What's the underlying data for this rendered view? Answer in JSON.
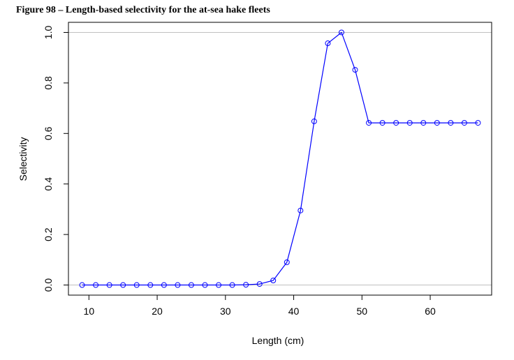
{
  "figure_title": "Figure 98 – Length-based selectivity for the at-sea hake fleets",
  "colors": {
    "series": "#0000ff",
    "refline": "#c0c0c0",
    "axis": "#000000"
  },
  "chart_data": {
    "type": "line",
    "title": "",
    "xlabel": "Length (cm)",
    "ylabel": "Selectivity",
    "xlim": [
      7.0,
      69.0
    ],
    "ylim": [
      -0.04,
      1.04
    ],
    "xticks": [
      10,
      20,
      30,
      40,
      50,
      60
    ],
    "xtick_labels": [
      "10",
      "20",
      "30",
      "40",
      "50",
      "60"
    ],
    "yticks": [
      0.0,
      0.2,
      0.4,
      0.6,
      0.8,
      1.0
    ],
    "ytick_labels": [
      "0.0",
      "0.2",
      "0.4",
      "0.6",
      "0.8",
      "1.0"
    ],
    "reference_lines": [
      0,
      1
    ],
    "grid": false,
    "markers": "open-circle",
    "series": [
      {
        "x": [
          9,
          11,
          13,
          15,
          17,
          19,
          21,
          23,
          25,
          27,
          29,
          31,
          33,
          35,
          37,
          39,
          41,
          43,
          45,
          47,
          49,
          51,
          53,
          55,
          57,
          59,
          61,
          63,
          65,
          67
        ],
        "values": [
          0.0,
          0.0,
          0.0,
          0.0,
          0.0,
          0.0,
          0.0,
          0.0,
          0.0,
          0.0,
          0.0,
          0.0,
          0.001,
          0.004,
          0.018,
          0.09,
          0.295,
          0.648,
          0.957,
          1.0,
          0.852,
          0.642,
          0.642,
          0.642,
          0.642,
          0.642,
          0.642,
          0.642,
          0.642,
          0.642
        ]
      }
    ]
  }
}
